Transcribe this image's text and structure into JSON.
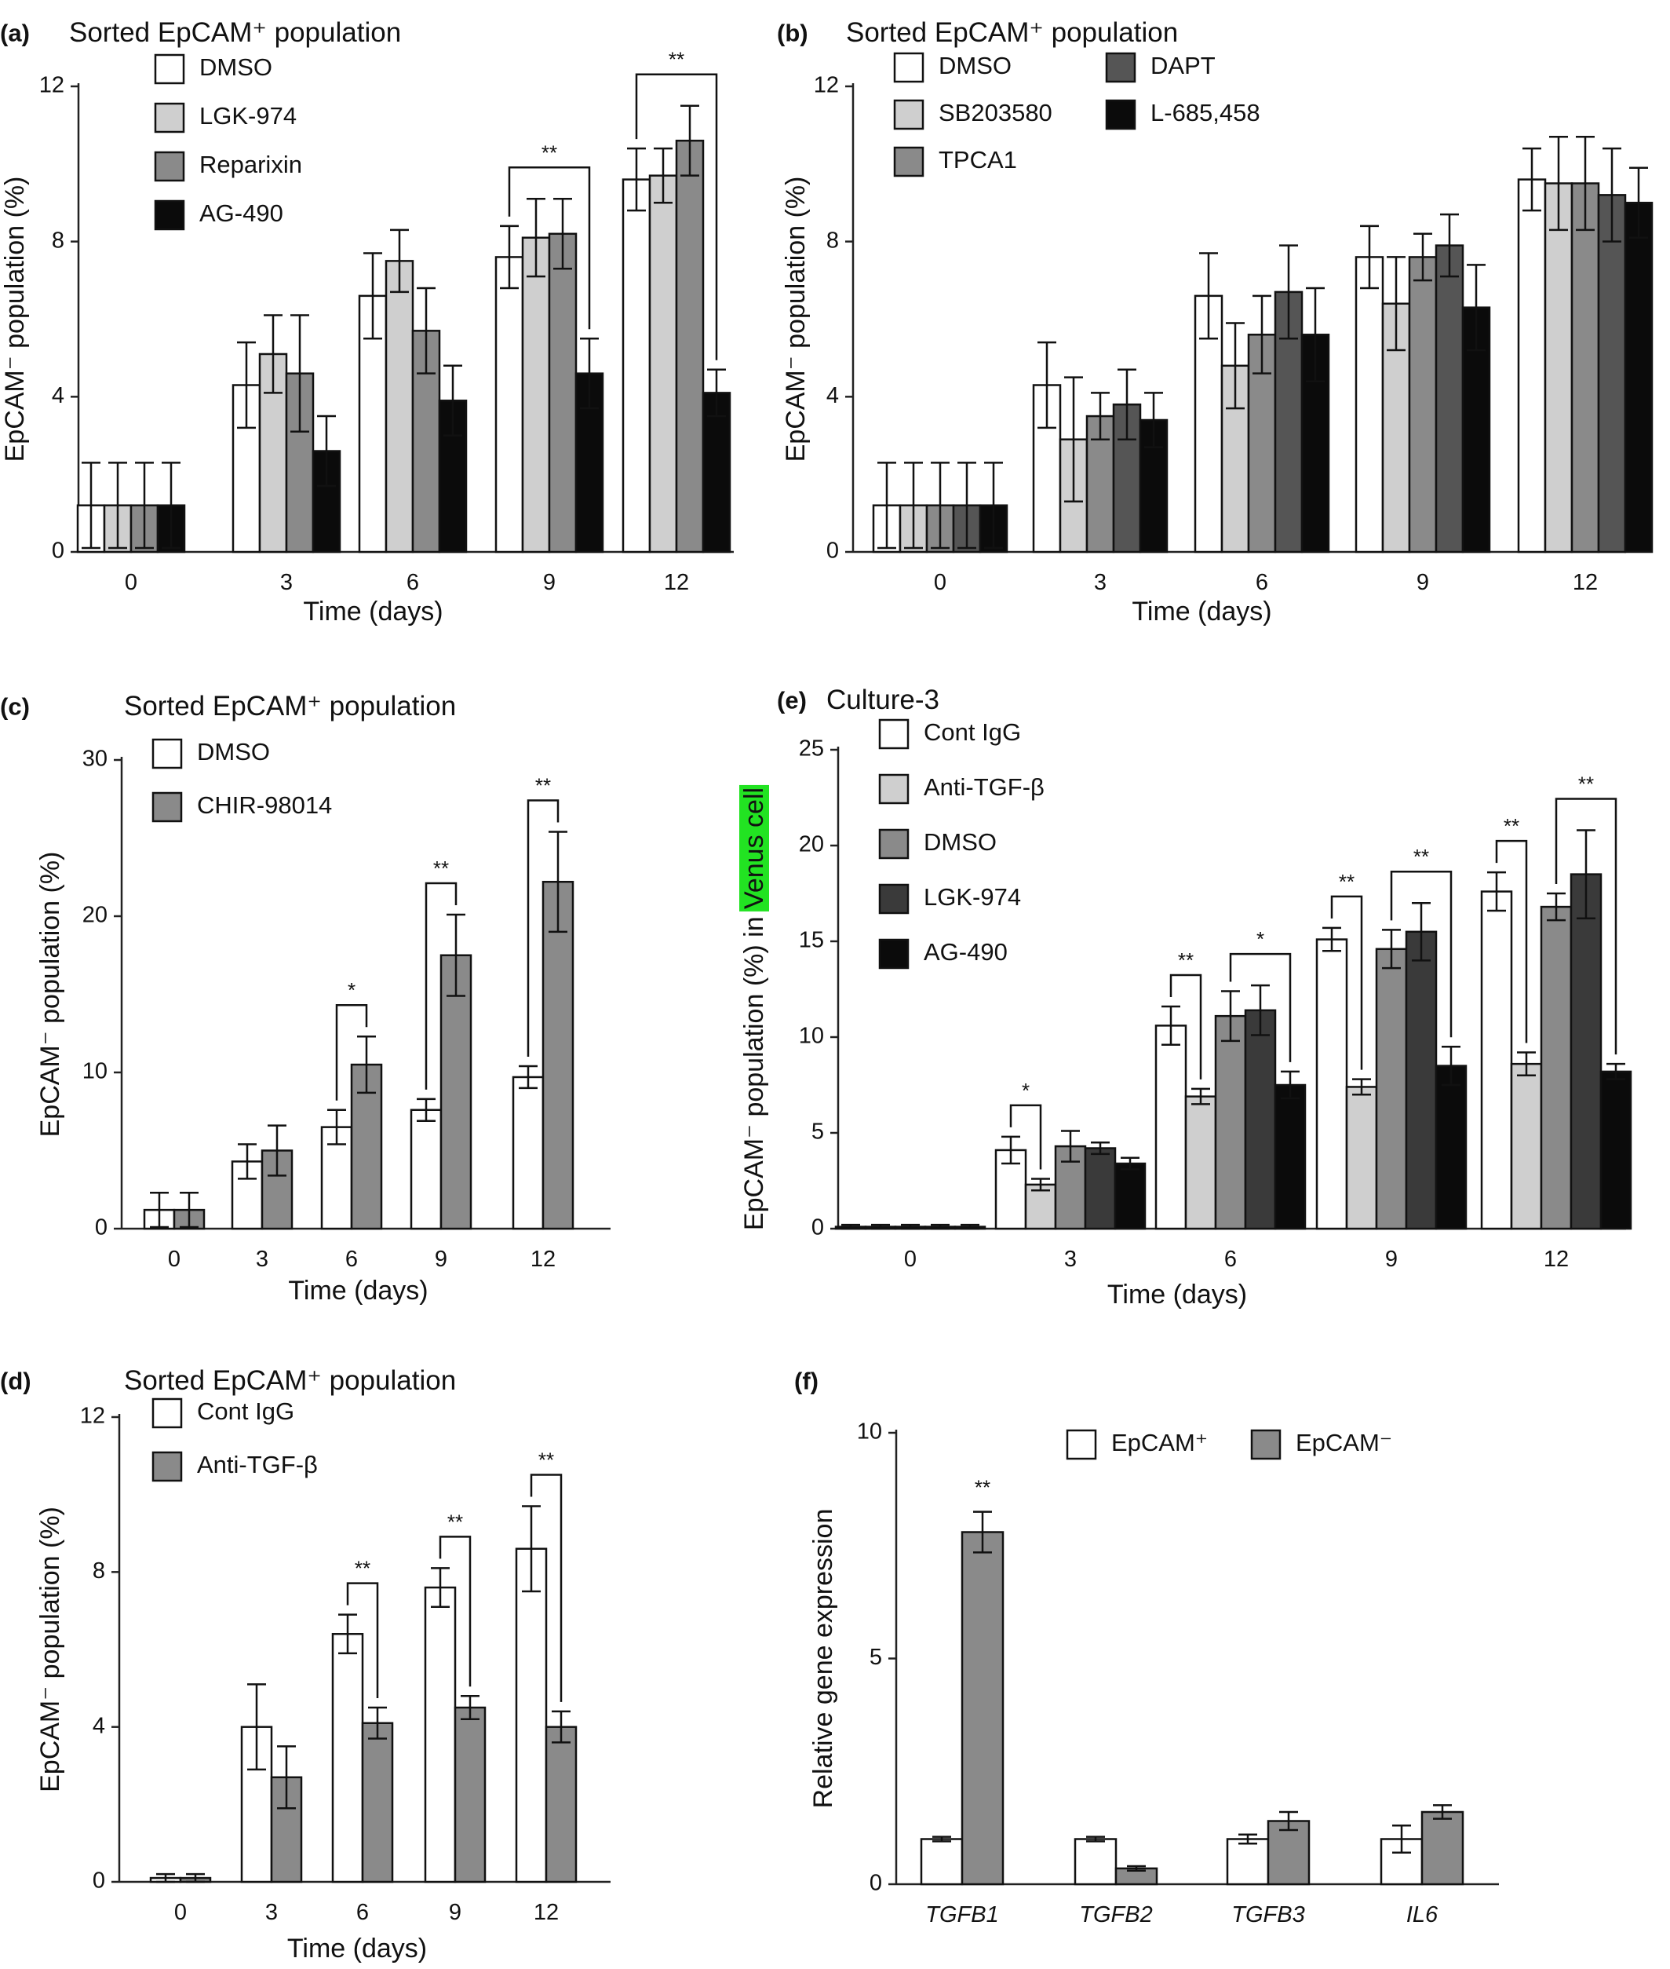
{
  "colors": {
    "white": "#ffffff",
    "lightgray": "#cfcfcf",
    "gray": "#8a8a8a",
    "darkgray": "#555555",
    "verydark": "#3a3a3a",
    "black": "#0b0b0b",
    "venus_highlight": "#22e322"
  },
  "chart_data": [
    {
      "id": "a",
      "panel_label": "(a)",
      "title": "Sorted EpCAM⁺ population",
      "type": "bar",
      "xlabel": "Time (days)",
      "ylabel": "EpCAM⁻ population (%)",
      "ylim": [
        0,
        12
      ],
      "yticks": [
        0,
        4,
        8,
        12
      ],
      "categories": [
        "0",
        "3",
        "6",
        "9",
        "12"
      ],
      "series": [
        {
          "name": "DMSO",
          "color": "white",
          "values": [
            1.2,
            4.3,
            6.6,
            7.6,
            9.6
          ],
          "errors": [
            1.1,
            1.1,
            1.1,
            0.8,
            0.8
          ]
        },
        {
          "name": "LGK-974",
          "color": "lightgray",
          "values": [
            1.2,
            5.1,
            7.5,
            8.1,
            9.7
          ],
          "errors": [
            1.1,
            1.0,
            0.8,
            1.0,
            0.7
          ]
        },
        {
          "name": "Reparixin",
          "color": "gray",
          "values": [
            1.2,
            4.6,
            5.7,
            8.2,
            10.6
          ],
          "errors": [
            1.1,
            1.5,
            1.1,
            0.9,
            0.9
          ]
        },
        {
          "name": "AG-490",
          "color": "black",
          "values": [
            1.2,
            2.6,
            3.9,
            4.6,
            4.1
          ],
          "errors": [
            1.1,
            0.9,
            0.9,
            0.9,
            0.6
          ]
        }
      ],
      "significance": [
        {
          "label": "**",
          "category": 3,
          "from_series": 0,
          "to_series": 3
        },
        {
          "label": "**",
          "category": 4,
          "from_series": 0,
          "to_series": 3
        }
      ],
      "legend": {
        "placement": "top-left",
        "columns": 1
      }
    },
    {
      "id": "b",
      "panel_label": "(b)",
      "title": "Sorted EpCAM⁺ population",
      "type": "bar",
      "xlabel": "Time (days)",
      "ylabel": "EpCAM⁻ population (%)",
      "ylim": [
        0,
        12
      ],
      "yticks": [
        0,
        4,
        8,
        12
      ],
      "categories": [
        "0",
        "3",
        "6",
        "9",
        "12"
      ],
      "series": [
        {
          "name": "DMSO",
          "color": "white",
          "values": [
            1.2,
            4.3,
            6.6,
            7.6,
            9.6
          ],
          "errors": [
            1.1,
            1.1,
            1.1,
            0.8,
            0.8
          ]
        },
        {
          "name": "SB203580",
          "color": "lightgray",
          "values": [
            1.2,
            2.9,
            4.8,
            6.4,
            9.5
          ],
          "errors": [
            1.1,
            1.6,
            1.1,
            1.2,
            1.2
          ]
        },
        {
          "name": "TPCA1",
          "color": "gray",
          "values": [
            1.2,
            3.5,
            5.6,
            7.6,
            9.5
          ],
          "errors": [
            1.1,
            0.6,
            1.0,
            0.6,
            1.2
          ]
        },
        {
          "name": "DAPT",
          "color": "darkgray",
          "values": [
            1.2,
            3.8,
            6.7,
            7.9,
            9.2
          ],
          "errors": [
            1.1,
            0.9,
            1.2,
            0.8,
            1.2
          ]
        },
        {
          "name": "L-685,458",
          "color": "black",
          "values": [
            1.2,
            3.4,
            5.6,
            6.3,
            9.0
          ],
          "errors": [
            1.1,
            0.7,
            1.2,
            1.1,
            0.9
          ]
        }
      ],
      "significance": [],
      "legend": {
        "placement": "top-left",
        "columns": 2
      }
    },
    {
      "id": "c",
      "panel_label": "(c)",
      "title": "Sorted EpCAM⁺ population",
      "type": "bar",
      "xlabel": "Time (days)",
      "ylabel": "EpCAM⁻ population (%)",
      "ylim": [
        0,
        30
      ],
      "yticks": [
        0,
        10,
        20,
        30
      ],
      "categories": [
        "0",
        "3",
        "6",
        "9",
        "12"
      ],
      "series": [
        {
          "name": "DMSO",
          "color": "white",
          "values": [
            1.2,
            4.3,
            6.5,
            7.6,
            9.7
          ],
          "errors": [
            1.1,
            1.1,
            1.1,
            0.7,
            0.7
          ]
        },
        {
          "name": "CHIR-98014",
          "color": "gray",
          "values": [
            1.2,
            5.0,
            10.5,
            17.5,
            22.2
          ],
          "errors": [
            1.1,
            1.6,
            1.8,
            2.6,
            3.2
          ]
        }
      ],
      "significance": [
        {
          "label": "*",
          "category": 2,
          "from_series": 0,
          "to_series": 1
        },
        {
          "label": "**",
          "category": 3,
          "from_series": 0,
          "to_series": 1
        },
        {
          "label": "**",
          "category": 4,
          "from_series": 0,
          "to_series": 1
        }
      ],
      "legend": {
        "placement": "top-left",
        "columns": 1
      }
    },
    {
      "id": "d",
      "panel_label": "(d)",
      "title": "Sorted EpCAM⁺ population",
      "type": "bar",
      "xlabel": "Time (days)",
      "ylabel": "EpCAM⁻ population (%)",
      "ylim": [
        0,
        12
      ],
      "yticks": [
        0,
        4,
        8,
        12
      ],
      "categories": [
        "0",
        "3",
        "6",
        "9",
        "12"
      ],
      "series": [
        {
          "name": "Cont IgG",
          "color": "white",
          "values": [
            0.1,
            4.0,
            6.4,
            7.6,
            8.6
          ],
          "errors": [
            0.1,
            1.1,
            0.5,
            0.5,
            1.1
          ]
        },
        {
          "name": "Anti-TGF-β",
          "color": "gray",
          "values": [
            0.1,
            2.7,
            4.1,
            4.5,
            4.0
          ],
          "errors": [
            0.1,
            0.8,
            0.4,
            0.3,
            0.4
          ]
        }
      ],
      "significance": [
        {
          "label": "**",
          "category": 2,
          "from_series": 0,
          "to_series": 1
        },
        {
          "label": "**",
          "category": 3,
          "from_series": 0,
          "to_series": 1
        },
        {
          "label": "**",
          "category": 4,
          "from_series": 0,
          "to_series": 1
        }
      ],
      "legend": {
        "placement": "top-left",
        "columns": 1
      }
    },
    {
      "id": "e",
      "panel_label": "(e)",
      "title": "Culture-3",
      "type": "bar",
      "xlabel": "Time (days)",
      "ylabel_prefix": "EpCAM⁻ population (%) in ",
      "ylabel_highlight": "Venus cell",
      "ylim": [
        0,
        25
      ],
      "yticks": [
        0,
        5,
        10,
        15,
        20,
        25
      ],
      "categories": [
        "0",
        "3",
        "6",
        "9",
        "12"
      ],
      "series": [
        {
          "name": "Cont IgG",
          "color": "white",
          "values": [
            0.1,
            4.1,
            10.6,
            15.1,
            17.6
          ],
          "errors": [
            0.1,
            0.7,
            1.0,
            0.6,
            1.0
          ]
        },
        {
          "name": "Anti-TGF-β",
          "color": "lightgray",
          "values": [
            0.1,
            2.3,
            6.9,
            7.4,
            8.6
          ],
          "errors": [
            0.1,
            0.3,
            0.4,
            0.4,
            0.6
          ]
        },
        {
          "name": "DMSO",
          "color": "gray",
          "values": [
            0.1,
            4.3,
            11.1,
            14.6,
            16.8
          ],
          "errors": [
            0.1,
            0.8,
            1.3,
            1.0,
            0.7
          ]
        },
        {
          "name": "LGK-974",
          "color": "verydark",
          "values": [
            0.1,
            4.2,
            11.4,
            15.5,
            18.5
          ],
          "errors": [
            0.1,
            0.3,
            1.3,
            1.5,
            2.3
          ]
        },
        {
          "name": "AG-490",
          "color": "black",
          "values": [
            0.1,
            3.4,
            7.5,
            8.5,
            8.2
          ],
          "errors": [
            0.1,
            0.3,
            0.7,
            1.0,
            0.4
          ]
        }
      ],
      "significance": [
        {
          "label": "*",
          "category": 1,
          "from_series": 0,
          "to_series": 1
        },
        {
          "label": "**",
          "category": 2,
          "from_series": 0,
          "to_series": 1
        },
        {
          "label": "*",
          "category": 2,
          "from_series": 2,
          "to_series": 4
        },
        {
          "label": "**",
          "category": 3,
          "from_series": 0,
          "to_series": 1
        },
        {
          "label": "**",
          "category": 3,
          "from_series": 2,
          "to_series": 4
        },
        {
          "label": "**",
          "category": 4,
          "from_series": 0,
          "to_series": 1
        },
        {
          "label": "**",
          "category": 4,
          "from_series": 2,
          "to_series": 4
        }
      ],
      "legend": {
        "placement": "top-left",
        "columns": 1
      }
    },
    {
      "id": "f",
      "panel_label": "(f)",
      "title": "",
      "type": "bar",
      "xlabel": "",
      "ylabel": "Relative  gene expression",
      "ylim": [
        0,
        10
      ],
      "yticks": [
        0,
        5,
        10
      ],
      "categories": [
        "TGFB1",
        "TGFB2",
        "TGFB3",
        "IL6"
      ],
      "categories_italic": true,
      "series": [
        {
          "name": "EpCAM⁺",
          "color": "white",
          "values": [
            1.0,
            1.0,
            1.0,
            1.0
          ],
          "errors": [
            0.05,
            0.05,
            0.1,
            0.3
          ]
        },
        {
          "name": "EpCAM⁻",
          "color": "gray",
          "values": [
            7.8,
            0.35,
            1.4,
            1.6
          ],
          "errors": [
            0.45,
            0.05,
            0.2,
            0.15
          ]
        }
      ],
      "annotations": [
        {
          "label": "**",
          "category": 0,
          "series": 1
        }
      ],
      "significance": [],
      "legend": {
        "placement": "top",
        "columns": 2
      }
    }
  ]
}
